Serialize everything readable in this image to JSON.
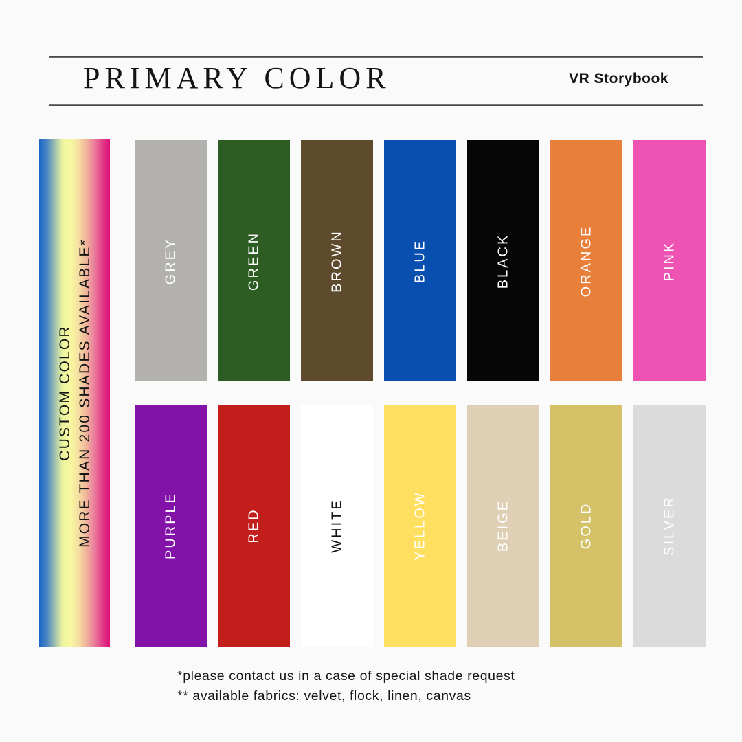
{
  "page": {
    "background": "#fafafa"
  },
  "header": {
    "title": "PRIMARY COLOR",
    "brand": "VR Storybook"
  },
  "custom_bar": {
    "line1": "CUSTOM COLOR",
    "line2": "MORE THAN 200 SHADES AVAILABLE*",
    "gradient_stops": [
      "#1a67c6",
      "#4c86c4",
      "#9fc0ae",
      "#eef49f",
      "#f7f8a0",
      "#f6dfa2",
      "#f0b49b",
      "#ea7f9d",
      "#e23f8a",
      "#dc0f77"
    ]
  },
  "swatch_rows": [
    [
      {
        "label": "GREY",
        "color": "#b3b1ae",
        "text_color": "#ffffff"
      },
      {
        "label": "GREEN",
        "color": "#2d5d23",
        "text_color": "#ffffff"
      },
      {
        "label": "BROWN",
        "color": "#5e4b2d",
        "text_color": "#ffffff"
      },
      {
        "label": "BLUE",
        "color": "#084fb0",
        "text_color": "#ffffff"
      },
      {
        "label": "BLACK",
        "color": "#060606",
        "text_color": "#ffffff"
      },
      {
        "label": "ORANGE",
        "color": "#e87f3b",
        "text_color": "#ffffff"
      },
      {
        "label": "PINK",
        "color": "#ee53b3",
        "text_color": "#ffffff"
      }
    ],
    [
      {
        "label": "PURPLE",
        "color": "#8312a8",
        "text_color": "#ffffff"
      },
      {
        "label": "RED",
        "color": "#c21e1c",
        "text_color": "#ffffff"
      },
      {
        "label": "WHITE",
        "color": "#ffffff",
        "text_color": "#111111"
      },
      {
        "label": "YELLOW",
        "color": "#ffdf5f",
        "text_color": "#ffffff"
      },
      {
        "label": "BEIGE",
        "color": "#decfb5",
        "text_color": "#ffffff"
      },
      {
        "label": "GOLD",
        "color": "#d5c268",
        "text_color": "#ffffff"
      },
      {
        "label": "SILVER",
        "color": "#dbdbdb",
        "text_color": "#ffffff"
      }
    ]
  ],
  "footnotes": {
    "line1": "*please contact us in a case of special shade request",
    "line2": "** available fabrics: velvet, flock, linen, canvas"
  }
}
